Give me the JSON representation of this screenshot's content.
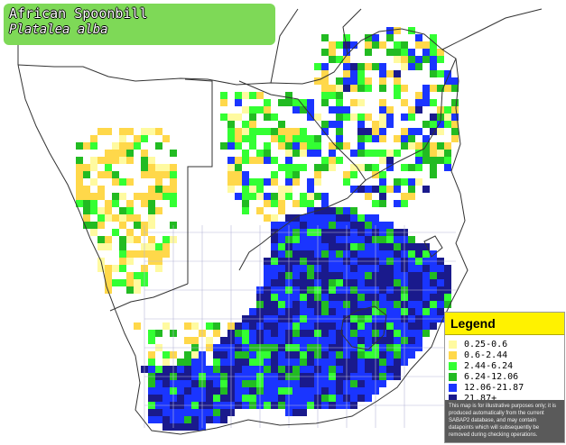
{
  "species": {
    "common_name": "African Spoonbill",
    "scientific_name": "Platalea alba"
  },
  "legend": {
    "title": "Legend",
    "items": [
      {
        "label": "0.25-0.6",
        "color": "#fffaa0"
      },
      {
        "label": "0.6-2.44",
        "color": "#ffd84a"
      },
      {
        "label": "2.44-6.24",
        "color": "#33ff33"
      },
      {
        "label": "6.24-12.06",
        "color": "#22bb22"
      },
      {
        "label": "12.06-21.87",
        "color": "#1a35ff"
      },
      {
        "label": "21.87+",
        "color": "#1a1a8c"
      }
    ],
    "note": "This map is for illustrative purposes only; it is produced automatically from the current SABAP2 database, and may contain datapoints which will subsequently be removed during checking operations."
  },
  "map_colors": {
    "background": "#ffffff",
    "border": "#333333",
    "grid": "#b8b8d8"
  }
}
